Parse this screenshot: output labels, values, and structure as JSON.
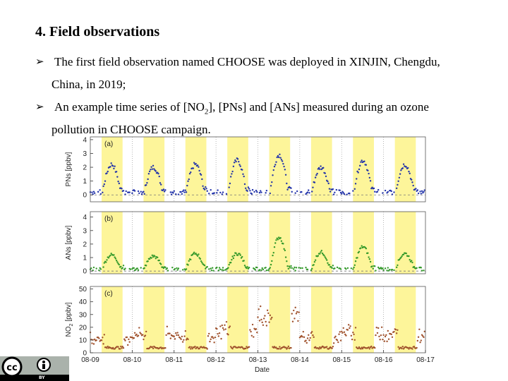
{
  "slide": {
    "title": "4. Field observations",
    "bullet1_line1": "The first field observation named CHOOSE was deployed in XINJIN, Chengdu,",
    "bullet1_line2": "China, in 2019;",
    "bullet2_line1_a": "An example time series of [NO",
    "bullet2_line1_sub": "2",
    "bullet2_line1_b": "], [PNs] and [ANs] measured during an ozone",
    "bullet2_line2": "pollution in CHOOSE campaign.",
    "bullet_symbol": "➢"
  },
  "license": {
    "cc_text": "cc",
    "by_text": "BY"
  },
  "chart_data": {
    "type": "scatter",
    "xlabel": "Date",
    "x_ticks": [
      "08-09",
      "08-10",
      "08-11",
      "08-12",
      "08-13",
      "08-14",
      "08-15",
      "08-16",
      "08-17"
    ],
    "daytime_highlight_color": "#fdf59a",
    "panels": [
      {
        "label": "(a)",
        "ylabel": "PNs [ppbv]",
        "ylim": [
          -0.5,
          4.2
        ],
        "yticks": [
          0,
          1,
          2,
          3,
          4
        ],
        "color": "#2233aa",
        "daily_base": 0.4,
        "daily_peak": [
          2.2,
          2.0,
          2.2,
          2.5,
          2.9,
          2.0,
          2.5,
          2.2
        ]
      },
      {
        "label": "(b)",
        "ylabel": "ANs [ppbv]",
        "ylim": [
          -0.2,
          4.4
        ],
        "yticks": [
          0,
          1,
          2,
          3,
          4
        ],
        "color": "#33992a",
        "daily_base": 0.3,
        "daily_peak": [
          1.2,
          1.1,
          1.3,
          1.3,
          2.5,
          1.4,
          1.8,
          1.3
        ]
      },
      {
        "label": "(c)",
        "ylabel_main": "NO",
        "ylabel_sub": "2",
        "ylabel_unit": " [ppbv]",
        "ylim": [
          0,
          52
        ],
        "yticks": [
          0,
          10,
          20,
          30,
          40,
          50
        ],
        "color": "#a0522d",
        "daily_base": 3,
        "daily_night": [
          14,
          18,
          16,
          22,
          35,
          15,
          20,
          18
        ]
      }
    ]
  },
  "colors": {
    "pns": "#2233aa",
    "ans": "#33992a",
    "no2": "#a0522d",
    "highlight": "#fdf59a"
  }
}
